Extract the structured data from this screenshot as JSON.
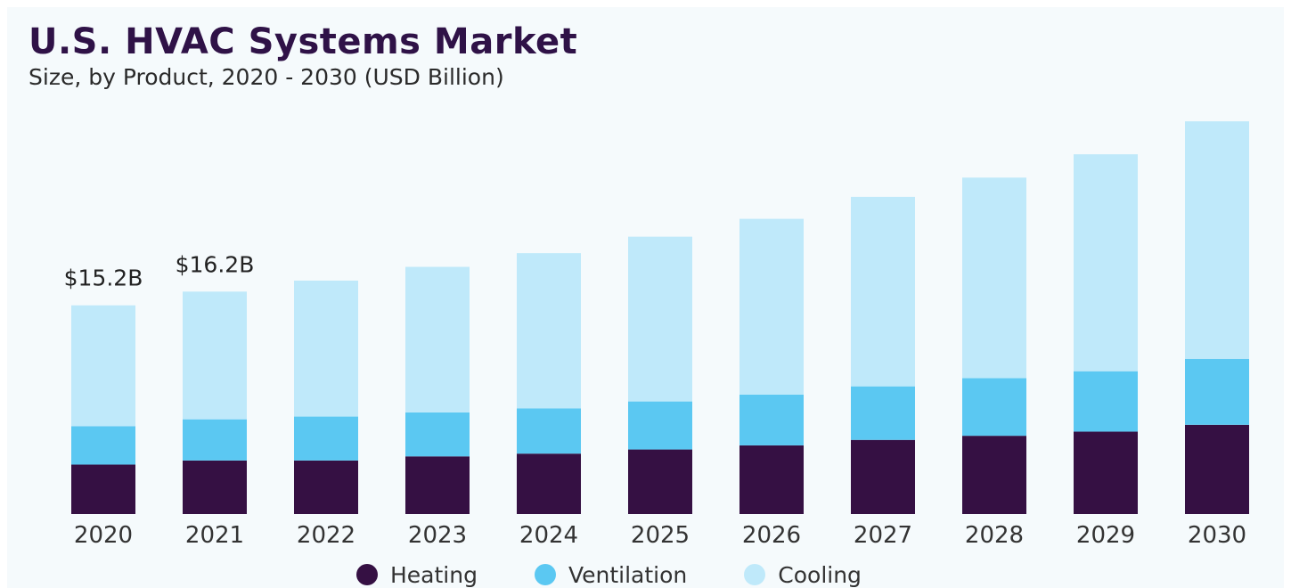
{
  "header": {
    "title": "U.S. HVAC Systems Market",
    "subtitle": "Size, by Product, 2020 - 2030 (USD Billion)"
  },
  "colors": {
    "heating": "#351043",
    "ventilation": "#5bc8f2",
    "cooling": "#bfe9fa",
    "background": "#f5fafc"
  },
  "chart_data": {
    "type": "bar",
    "stacked": true,
    "title": "U.S. HVAC Systems Market",
    "subtitle": "Size, by Product, 2020 - 2030 (USD Billion)",
    "xlabel": "",
    "ylabel": "",
    "categories": [
      "2020",
      "2021",
      "2022",
      "2023",
      "2024",
      "2025",
      "2026",
      "2027",
      "2028",
      "2029",
      "2030"
    ],
    "series": [
      {
        "name": "Heating",
        "values": [
          3.6,
          3.9,
          3.9,
          4.2,
          4.4,
          4.7,
          5.0,
          5.4,
          5.7,
          6.0,
          6.5
        ]
      },
      {
        "name": "Ventilation",
        "values": [
          2.8,
          3.0,
          3.2,
          3.2,
          3.3,
          3.5,
          3.7,
          3.9,
          4.2,
          4.4,
          4.8
        ]
      },
      {
        "name": "Cooling",
        "values": [
          8.8,
          9.3,
          9.9,
          10.6,
          11.3,
          12.0,
          12.8,
          13.8,
          14.6,
          15.8,
          17.3
        ]
      }
    ],
    "data_labels": [
      {
        "category": "2020",
        "text": "$15.2B"
      },
      {
        "category": "2021",
        "text": "$16.2B"
      }
    ],
    "ylim": [
      0,
      29
    ],
    "grid": false,
    "legend_position": "bottom"
  }
}
